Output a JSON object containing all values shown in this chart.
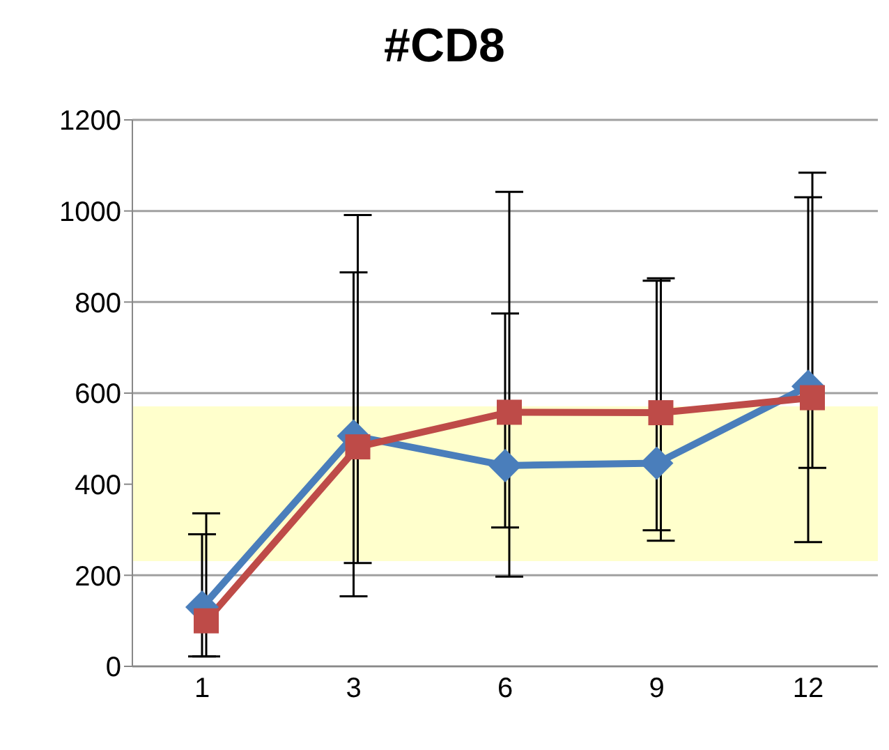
{
  "chart_data": {
    "type": "line",
    "title": "#CD8",
    "categories": [
      "1",
      "3",
      "6",
      "9",
      "12"
    ],
    "series": [
      {
        "color": "#4a7ebb",
        "marker": "diamond",
        "values": [
          130,
          506,
          441,
          446,
          615
        ],
        "errors": [
          [
            22,
            290
          ],
          [
            154,
            865
          ],
          [
            305,
            775
          ],
          [
            299,
            847
          ],
          [
            273,
            1030
          ]
        ]
      },
      {
        "color": "#be4b48",
        "marker": "square",
        "values": [
          100,
          482,
          558,
          557,
          590
        ],
        "errors": [
          [
            22,
            336
          ],
          [
            227,
            991
          ],
          [
            197,
            1042
          ],
          [
            276,
            852
          ],
          [
            436,
            1084
          ]
        ]
      }
    ],
    "ylim": [
      0,
      1200
    ],
    "yticks": [
      0,
      200,
      400,
      600,
      800,
      1000,
      1200
    ],
    "grid": "y",
    "legend": false,
    "bands": [
      {
        "axis": "y",
        "from": 231,
        "to": 571,
        "color": "#ffffcc"
      }
    ]
  }
}
